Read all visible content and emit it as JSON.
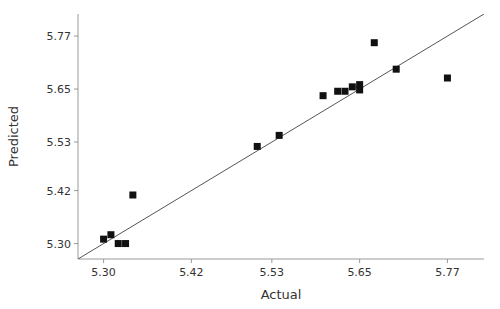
{
  "chart_data": {
    "type": "scatter",
    "x_label": "Actual",
    "y_label": "Predicted",
    "x": [
      5.3,
      5.31,
      5.32,
      5.33,
      5.34,
      5.51,
      5.54,
      5.6,
      5.62,
      5.63,
      5.64,
      5.65,
      5.65,
      5.67,
      5.7,
      5.77
    ],
    "values": [
      5.31,
      5.32,
      5.3,
      5.3,
      5.41,
      5.52,
      5.545,
      5.635,
      5.645,
      5.645,
      5.655,
      5.648,
      5.66,
      5.755,
      5.695,
      5.675
    ],
    "color": "#111111",
    "marker": "square",
    "xlim": [
      5.265,
      5.82
    ],
    "ylim": [
      5.265,
      5.82
    ],
    "xticks": [
      {
        "value": 5.3,
        "label": "5.30"
      },
      5.42,
      5.53,
      5.65,
      5.77
    ],
    "yticks": [
      {
        "value": 5.3,
        "label": "5.30"
      },
      5.42,
      5.53,
      5.65,
      5.77
    ],
    "grid": false
  }
}
